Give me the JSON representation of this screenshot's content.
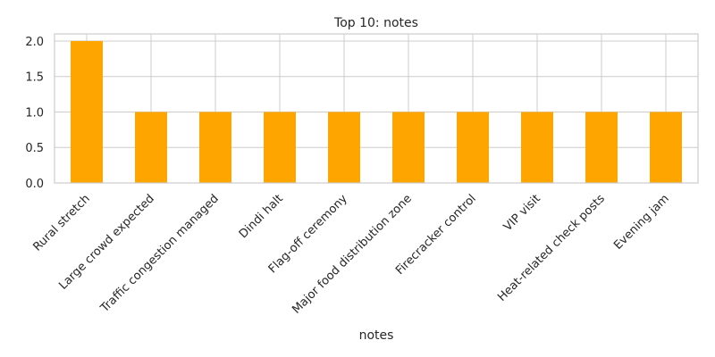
{
  "chart_data": {
    "type": "bar",
    "title": "Top 10: notes",
    "xlabel": "notes",
    "ylabel": "",
    "categories": [
      "Rural stretch",
      "Large crowd expected",
      "Traffic congestion managed",
      "Dindi halt",
      "Flag-off ceremony",
      "Major food distribution zone",
      "Firecracker control",
      "VIP visit",
      "Heat-related check posts",
      "Evening jam"
    ],
    "values": [
      2,
      1,
      1,
      1,
      1,
      1,
      1,
      1,
      1,
      1
    ],
    "ylim": [
      0,
      2.1
    ],
    "yticks": [
      0.0,
      0.5,
      1.0,
      1.5,
      2.0
    ],
    "ytick_labels": [
      "0.0",
      "0.5",
      "1.0",
      "1.5",
      "2.0"
    ],
    "grid": true,
    "bar_color": "#FFA500"
  }
}
